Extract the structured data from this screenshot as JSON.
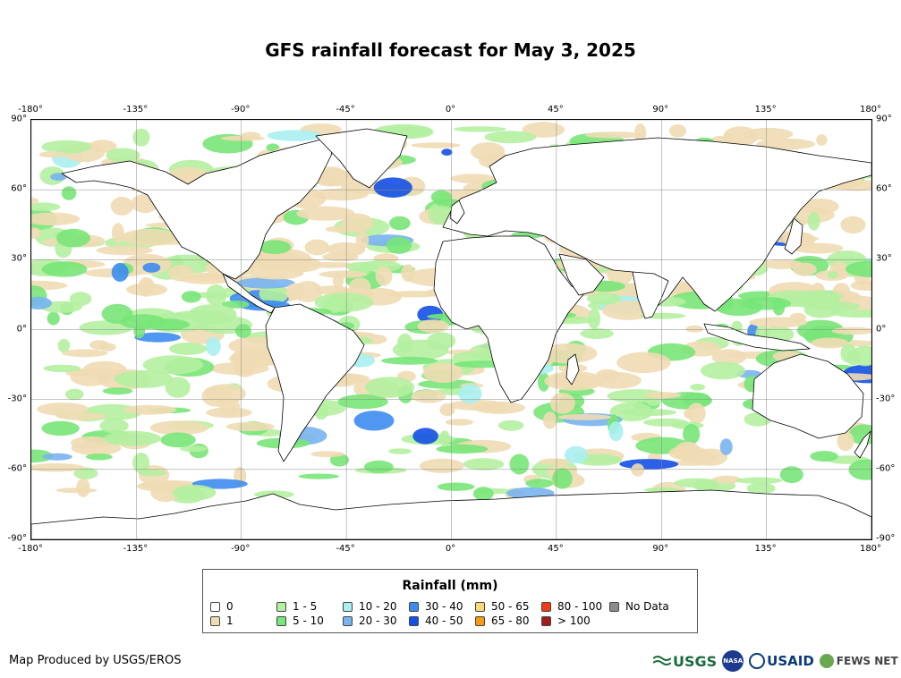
{
  "title": "GFS rainfall forecast for May 3, 2025",
  "axes": {
    "lon_labels": [
      "-180°",
      "-135°",
      "-90°",
      "-45°",
      "0°",
      "45°",
      "90°",
      "135°",
      "180°"
    ],
    "lat_labels": [
      "90°",
      "60°",
      "30°",
      "0°",
      "-30°",
      "-60°",
      "-90°"
    ],
    "lon_values": [
      -180,
      -135,
      -90,
      -45,
      0,
      45,
      90,
      135,
      180
    ],
    "lat_values": [
      90,
      60,
      30,
      0,
      -30,
      -60,
      -90
    ]
  },
  "legend": {
    "title": "Rainfall (mm)",
    "items": [
      {
        "label": "0",
        "color": "#ffffff"
      },
      {
        "label": "1",
        "color": "#f0dcb4"
      },
      {
        "label": "1 - 5",
        "color": "#b4f0a0"
      },
      {
        "label": "5 - 10",
        "color": "#78e678"
      },
      {
        "label": "10 - 20",
        "color": "#aaf0f0"
      },
      {
        "label": "20 - 30",
        "color": "#78b4f0"
      },
      {
        "label": "30 - 40",
        "color": "#3c8cf0"
      },
      {
        "label": "40 - 50",
        "color": "#1450e6"
      },
      {
        "label": "50 - 65",
        "color": "#f5dc78"
      },
      {
        "label": "65 - 80",
        "color": "#f59a14"
      },
      {
        "label": "80 - 100",
        "color": "#f03c14"
      },
      {
        "label": "> 100",
        "color": "#a01e1e"
      },
      {
        "label": "No Data",
        "color": "#8c8c8c"
      }
    ]
  },
  "credit": "Map Produced by USGS/EROS",
  "logos": {
    "usgs": "USGS",
    "nasa": "NASA",
    "usaid": "USAID",
    "fews": "FEWS NET"
  }
}
